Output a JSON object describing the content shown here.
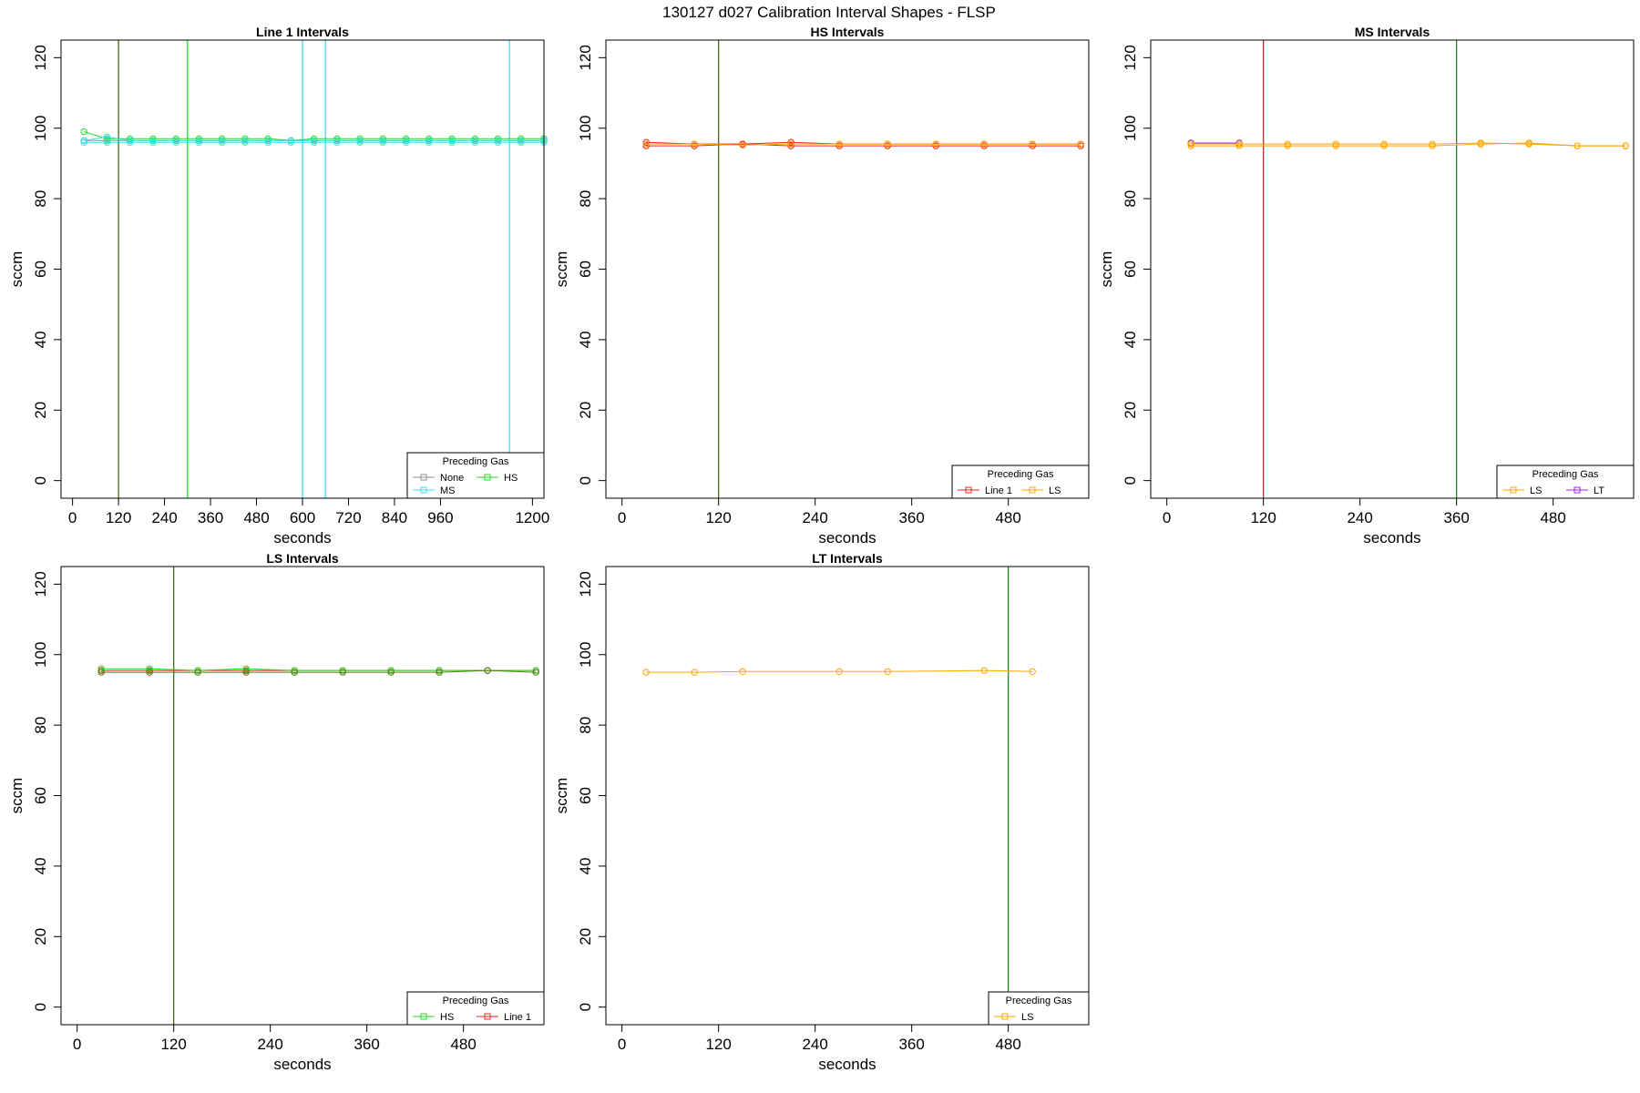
{
  "page_title": "130127   d027   Calibration Interval Shapes - FLSP",
  "chart_data": [
    {
      "type": "line",
      "title": "Line 1 Intervals",
      "xlabel": "seconds",
      "ylabel": "sccm",
      "xlim": [
        -30,
        1230
      ],
      "ylim": [
        -5,
        125
      ],
      "xticks": [
        0,
        120,
        240,
        360,
        480,
        600,
        720,
        840,
        960,
        1200
      ],
      "yticks": [
        0,
        20,
        40,
        60,
        80,
        100,
        120
      ],
      "grid": false,
      "legend": {
        "title": "Preceding Gas",
        "placement": "bottom-right",
        "columns": 2,
        "entries": [
          {
            "name": "None",
            "color": "#909090"
          },
          {
            "name": "HS",
            "color": "#22dd22"
          },
          {
            "name": "MS",
            "color": "#33e0e8"
          }
        ]
      },
      "vlines": [
        {
          "x": 120,
          "color": "#4a6a10"
        },
        {
          "x": 300,
          "color": "#22dd22"
        },
        {
          "x": 600,
          "color": "#33e0e8"
        },
        {
          "x": 660,
          "color": "#33e0e8"
        },
        {
          "x": 1140,
          "color": "#33e0e8"
        }
      ],
      "series": [
        {
          "name": "None",
          "color": "#909090",
          "x": [
            30,
            90,
            150,
            210,
            270,
            330,
            390,
            450,
            510,
            570,
            630,
            690,
            750,
            810,
            870,
            930,
            990,
            1050,
            1110,
            1170,
            1230
          ],
          "y": [
            96.5,
            96.5,
            96.5,
            96.5,
            96.5,
            96.5,
            96.5,
            96.5,
            96.5,
            96.5,
            96.5,
            96.5,
            96.5,
            96.5,
            96.5,
            96.5,
            96.5,
            96.5,
            96.5,
            96.5,
            96.5
          ]
        },
        {
          "name": "HS",
          "color": "#22dd22",
          "x": [
            30,
            90,
            150,
            210,
            270,
            330,
            390,
            450,
            510,
            570,
            630,
            690,
            750,
            810,
            870,
            930,
            990,
            1050,
            1110,
            1170,
            1230
          ],
          "y": [
            99,
            97,
            97,
            97,
            97,
            97,
            97,
            97,
            97,
            96.5,
            97,
            97,
            97,
            97,
            97,
            97,
            97,
            97,
            97,
            97,
            97
          ]
        },
        {
          "name": "MS",
          "color": "#33e0e8",
          "x": [
            30,
            90,
            150,
            210,
            270,
            330,
            390,
            450,
            510,
            570,
            630,
            690,
            750,
            810,
            870,
            930,
            990,
            1050,
            1110,
            1170,
            1230
          ],
          "y": [
            96.5,
            97.5,
            96.5,
            96.5,
            96.5,
            96.5,
            96.5,
            96.5,
            96.5,
            96.5,
            96.5,
            96.5,
            96.5,
            96.5,
            96.5,
            96.5,
            96.5,
            96.5,
            96.5,
            96.5,
            96.5
          ]
        },
        {
          "name": "MS",
          "color": "#33e0e8",
          "x": [
            30,
            90,
            150,
            210,
            270,
            330,
            390,
            450,
            510,
            570,
            630,
            690,
            750,
            810,
            870,
            930,
            990,
            1050,
            1110,
            1170,
            1230
          ],
          "y": [
            96,
            96,
            96,
            96,
            96,
            96,
            96,
            96,
            96,
            96,
            96,
            96,
            96,
            96,
            96,
            96,
            96,
            96,
            96,
            96,
            96
          ]
        }
      ]
    },
    {
      "type": "line",
      "title": "HS Intervals",
      "xlabel": "seconds",
      "ylabel": "sccm",
      "xlim": [
        -20,
        580
      ],
      "ylim": [
        -5,
        125
      ],
      "xticks": [
        0,
        120,
        240,
        360,
        480
      ],
      "yticks": [
        0,
        20,
        40,
        60,
        80,
        100,
        120
      ],
      "grid": false,
      "legend": {
        "title": "Preceding Gas",
        "placement": "bottom-right",
        "columns": 2,
        "entries": [
          {
            "name": "Line 1",
            "color": "#ee2222"
          },
          {
            "name": "LS",
            "color": "#ffa500"
          }
        ]
      },
      "vlines": [
        {
          "x": 120,
          "color": "#4a6a10"
        }
      ],
      "series": [
        {
          "name": "Line 1",
          "color": "#ee2222",
          "x": [
            30,
            90,
            150,
            210,
            270,
            330,
            390,
            450,
            510,
            570
          ],
          "y": [
            96,
            95.5,
            95.5,
            96,
            95.5,
            95.5,
            95.5,
            95.5,
            95.5,
            95.5
          ]
        },
        {
          "name": "Line 1",
          "color": "#ee2222",
          "x": [
            30,
            90,
            150,
            210,
            270,
            330,
            390,
            450,
            510,
            570
          ],
          "y": [
            95,
            95,
            95.5,
            95,
            95,
            95,
            95,
            95,
            95,
            95
          ]
        },
        {
          "name": "LS",
          "color": "#ffa500",
          "x": [
            30,
            90,
            150,
            210,
            270,
            330,
            390,
            450,
            510,
            570
          ],
          "y": [
            95.5,
            95.5,
            95.2,
            95.5,
            95.5,
            95.5,
            95.5,
            95.5,
            95.5,
            95.5
          ]
        }
      ]
    },
    {
      "type": "line",
      "title": "MS Intervals",
      "xlabel": "seconds",
      "ylabel": "sccm",
      "xlim": [
        -20,
        580
      ],
      "ylim": [
        -5,
        125
      ],
      "xticks": [
        0,
        120,
        240,
        360,
        480
      ],
      "yticks": [
        0,
        20,
        40,
        60,
        80,
        100,
        120
      ],
      "grid": false,
      "legend": {
        "title": "Preceding Gas",
        "placement": "bottom-right",
        "columns": 2,
        "entries": [
          {
            "name": "LS",
            "color": "#ffa500"
          },
          {
            "name": "LT",
            "color": "#a020f0"
          }
        ]
      },
      "vlines": [
        {
          "x": 120,
          "color": "#b03030"
        },
        {
          "x": 360,
          "color": "#228822"
        }
      ],
      "series": [
        {
          "name": "LT",
          "color": "#a020f0",
          "x": [
            30,
            90
          ],
          "y": [
            95.8,
            95.8
          ]
        },
        {
          "name": "LS",
          "color": "#ffa500",
          "x": [
            30,
            90,
            150,
            210,
            270,
            330,
            390,
            450,
            510,
            570
          ],
          "y": [
            95.5,
            95.5,
            95.5,
            95.5,
            95.5,
            95.5,
            95.8,
            95.5,
            95,
            95
          ]
        },
        {
          "name": "LS",
          "color": "#ffa500",
          "x": [
            30,
            90,
            150,
            210,
            270,
            330,
            390,
            450,
            510,
            570
          ],
          "y": [
            95,
            95,
            95,
            95,
            95,
            95,
            95.5,
            95.8,
            95,
            95
          ]
        }
      ]
    },
    {
      "type": "line",
      "title": "LS Intervals",
      "xlabel": "seconds",
      "ylabel": "sccm",
      "xlim": [
        -20,
        580
      ],
      "ylim": [
        -5,
        125
      ],
      "xticks": [
        0,
        120,
        240,
        360,
        480
      ],
      "yticks": [
        0,
        20,
        40,
        60,
        80,
        100,
        120
      ],
      "grid": false,
      "legend": {
        "title": "Preceding Gas",
        "placement": "bottom-right",
        "columns": 2,
        "entries": [
          {
            "name": "HS",
            "color": "#22dd22"
          },
          {
            "name": "Line 1",
            "color": "#ee2222"
          }
        ]
      },
      "vlines": [
        {
          "x": 120,
          "color": "#4a6a10"
        }
      ],
      "series": [
        {
          "name": "Line 1",
          "color": "#ee2222",
          "x": [
            30,
            90,
            150,
            210,
            270,
            330,
            390,
            450,
            510,
            570
          ],
          "y": [
            95.5,
            95.5,
            95.5,
            95.5,
            95.5,
            95.5,
            95.5,
            95.5,
            95.5,
            95.5
          ]
        },
        {
          "name": "HS",
          "color": "#22dd22",
          "x": [
            30,
            90,
            150,
            210,
            270,
            330,
            390,
            450,
            510,
            570
          ],
          "y": [
            96,
            96,
            95.5,
            96,
            95.5,
            95.5,
            95.5,
            95.5,
            95.5,
            95.5
          ]
        },
        {
          "name": "HS",
          "color": "#5a7a10",
          "x": [
            30,
            90,
            150,
            210,
            270,
            330,
            390,
            450,
            510,
            570
          ],
          "y": [
            95,
            95,
            95,
            95,
            95,
            95,
            95,
            95,
            95.5,
            95
          ]
        }
      ]
    },
    {
      "type": "line",
      "title": "LT Intervals",
      "xlabel": "seconds",
      "ylabel": "sccm",
      "xlim": [
        -20,
        580
      ],
      "ylim": [
        -5,
        125
      ],
      "xticks": [
        0,
        120,
        240,
        360,
        480
      ],
      "yticks": [
        0,
        20,
        40,
        60,
        80,
        100,
        120
      ],
      "grid": false,
      "legend": {
        "title": "Preceding Gas",
        "placement": "bottom-right",
        "columns": 1,
        "entries": [
          {
            "name": "LS",
            "color": "#ffa500"
          }
        ]
      },
      "vlines": [
        {
          "x": 480,
          "color": "#228822"
        }
      ],
      "series": [
        {
          "name": "LS",
          "color": "#ffa500",
          "x": [
            30,
            90,
            150,
            270,
            330,
            450,
            510
          ],
          "y": [
            95,
            95,
            95.2,
            95.2,
            95.2,
            95.5,
            95.2
          ]
        }
      ]
    }
  ]
}
